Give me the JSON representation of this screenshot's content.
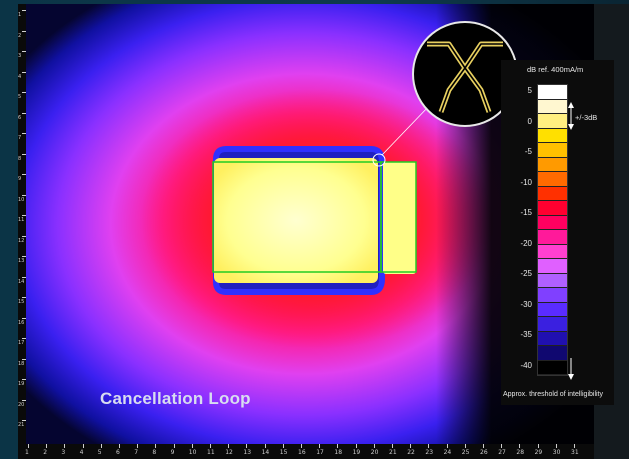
{
  "plot_label": "Cancellation Loop",
  "colorbar": {
    "title": "dB ref. 400mA/m",
    "range_label": "+/-3dB",
    "threshold_label": "Approx. threshold of intelligibility",
    "tick_values": [
      "5",
      "0",
      "-5",
      "-10",
      "-15",
      "-20",
      "-25",
      "-30",
      "-35",
      "-40"
    ],
    "colors": [
      "#ffffff",
      "#fff7d0",
      "#ffef80",
      "#ffe000",
      "#ffc000",
      "#ff9a00",
      "#ff6a00",
      "#ff3000",
      "#ff0030",
      "#ff0060",
      "#ff1a9a",
      "#ff40d0",
      "#e060ff",
      "#b060ff",
      "#8040ff",
      "#5a2cff",
      "#3a20e0",
      "#2010b0",
      "#100870",
      "#000000"
    ]
  },
  "ruler": {
    "bottom_labels": [
      "1",
      "2",
      "3",
      "4",
      "5",
      "6",
      "7",
      "8",
      "9",
      "10",
      "11",
      "12",
      "13",
      "14",
      "15",
      "16",
      "17",
      "18",
      "19",
      "20",
      "21",
      "22",
      "23",
      "24",
      "25",
      "26",
      "27",
      "28",
      "29",
      "30",
      "31"
    ],
    "left_labels": [
      "1",
      "2",
      "3",
      "4",
      "5",
      "6",
      "7",
      "8",
      "9",
      "10",
      "11",
      "12",
      "13",
      "14",
      "15",
      "16",
      "17",
      "18",
      "19",
      "20",
      "21"
    ]
  },
  "icons": {
    "inset": "cross-loop-icon",
    "arrow": "range-arrow-icon"
  }
}
